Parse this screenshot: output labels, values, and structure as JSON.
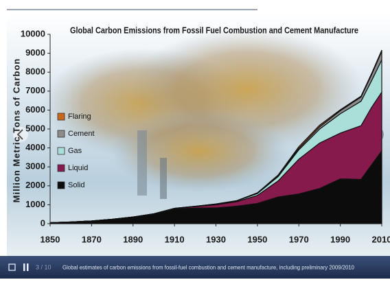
{
  "chart_data": {
    "type": "stacked-area",
    "title": "Global Carbon Emissions from Fossil Fuel Combustion and Cement Manufacture",
    "y_label": "Million Metric Tons of Carbon",
    "x": [
      1850,
      1860,
      1870,
      1880,
      1890,
      1900,
      1910,
      1920,
      1930,
      1940,
      1950,
      1960,
      1970,
      1980,
      1990,
      2000,
      2005,
      2010
    ],
    "series": [
      {
        "name": "Flaring",
        "color": "#c8661c",
        "values": [
          0,
          0,
          0,
          0,
          0,
          0,
          0,
          0,
          0,
          0,
          23,
          39,
          87,
          86,
          51,
          45,
          60,
          66
        ]
      },
      {
        "name": "Cement",
        "color": "#8c8c8c",
        "values": [
          0,
          0,
          0,
          0,
          0,
          0,
          0,
          3,
          10,
          11,
          18,
          43,
          78,
          120,
          157,
          226,
          320,
          450
        ]
      },
      {
        "name": "Gas",
        "color": "#a9ded9",
        "values": [
          0,
          0,
          0,
          0,
          0,
          0,
          9,
          13,
          30,
          42,
          97,
          227,
          493,
          737,
          1024,
          1289,
          1400,
          1702
        ]
      },
      {
        "name": "Liquid",
        "color": "#861a4c",
        "values": [
          0,
          0,
          0,
          1,
          3,
          16,
          28,
          78,
          169,
          236,
          423,
          849,
          1838,
          2397,
          2418,
          2836,
          3030,
          3107
        ]
      },
      {
        "name": "Solid",
        "color": "#0c0c0c",
        "values": [
          54,
          91,
          147,
          237,
          353,
          507,
          776,
          827,
          832,
          925,
          1070,
          1410,
          1571,
          1860,
          2365,
          2340,
          3100,
          3842
        ]
      }
    ],
    "xlim": [
      1850,
      2010
    ],
    "xticks": [
      1850,
      1870,
      1890,
      1910,
      1930,
      1950,
      1970,
      1990,
      2010
    ],
    "ylim": [
      0,
      10000
    ],
    "yticks": [
      0,
      1000,
      2000,
      3000,
      4000,
      5000,
      6000,
      7000,
      8000,
      9000,
      10000
    ]
  },
  "ui": {
    "counter": "3 / 10",
    "caption": "Global estimates of carbon emissions from fossil-fuel combustion and cement manufacture, including preliminary 2009/2010"
  }
}
